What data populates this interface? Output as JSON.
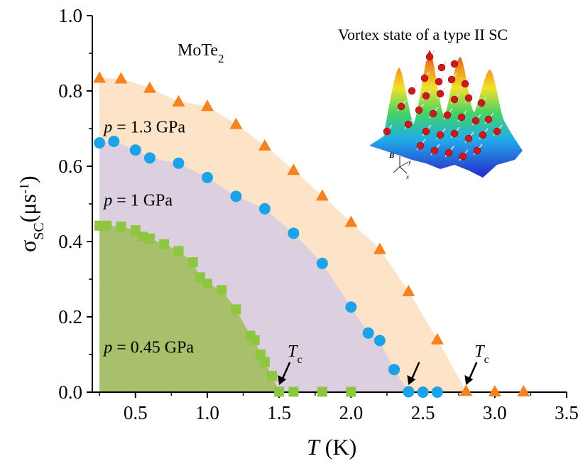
{
  "chart_data": {
    "type": "scatter",
    "xlabel": "T (K)",
    "ylabel": "σSC(μs-1)",
    "xlim": [
      0.2,
      3.5
    ],
    "ylim": [
      0.0,
      1.0
    ],
    "xticks": [
      "0.5",
      "1.0",
      "1.5",
      "2.0",
      "2.5",
      "3.0",
      "3.5"
    ],
    "yticks": [
      "0.0",
      "0.2",
      "0.4",
      "0.6",
      "0.8",
      "1.0"
    ],
    "grid": false,
    "material_label": "MoTe2",
    "inset_title": "Vortex state of a type II SC",
    "inset_axis_labels": [
      "B",
      "y",
      "x"
    ],
    "tc_label": "Tc",
    "series": [
      {
        "name": "p = 1.3 GPa",
        "marker": "triangle",
        "color": "#F5821F",
        "fill": "#FDE3C8",
        "x": [
          0.25,
          0.4,
          0.6,
          0.8,
          1.0,
          1.2,
          1.4,
          1.6,
          1.8,
          2.0,
          2.2,
          2.4,
          2.6,
          2.8,
          3.0,
          3.2
        ],
        "y": [
          0.835,
          0.833,
          0.808,
          0.772,
          0.76,
          0.712,
          0.655,
          0.59,
          0.522,
          0.452,
          0.38,
          0.268,
          0.14,
          0.003,
          0.002,
          0.002
        ]
      },
      {
        "name": "p = 1 GPa",
        "marker": "circle",
        "color": "#1AA3E8",
        "fill": "#DCCFE0",
        "x": [
          0.25,
          0.35,
          0.5,
          0.6,
          0.8,
          1.0,
          1.2,
          1.4,
          1.6,
          1.8,
          2.0,
          2.12,
          2.2,
          2.3,
          2.4,
          2.5,
          2.6
        ],
        "y": [
          0.662,
          0.666,
          0.643,
          0.622,
          0.608,
          0.57,
          0.52,
          0.487,
          0.422,
          0.342,
          0.226,
          0.157,
          0.137,
          0.06,
          0.001,
          0.0,
          0.0
        ]
      },
      {
        "name": "p = 0.45 GPa",
        "marker": "square",
        "color": "#8DC63F",
        "fill": "#A8BF6B",
        "x": [
          0.25,
          0.3,
          0.4,
          0.5,
          0.55,
          0.6,
          0.7,
          0.8,
          0.9,
          0.95,
          1.0,
          1.1,
          1.2,
          1.3,
          1.33,
          1.37,
          1.4,
          1.45,
          1.5,
          1.6,
          1.8,
          2.0
        ],
        "y": [
          0.442,
          0.442,
          0.44,
          0.43,
          0.413,
          0.408,
          0.393,
          0.375,
          0.345,
          0.305,
          0.288,
          0.271,
          0.22,
          0.15,
          0.138,
          0.1,
          0.08,
          0.043,
          0.001,
          0.001,
          0.001,
          0.001
        ]
      }
    ],
    "tc_arrows": [
      1.5,
      2.4,
      2.8
    ]
  }
}
